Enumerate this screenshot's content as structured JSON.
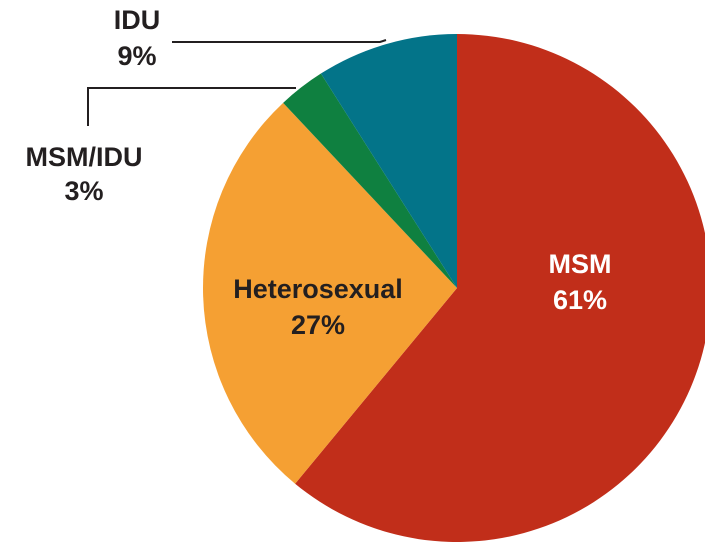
{
  "chart_data": {
    "type": "pie",
    "categories": [
      "MSM",
      "Heterosexual",
      "MSM/IDU",
      "IDU"
    ],
    "values": [
      61,
      27,
      3,
      9
    ],
    "value_labels": [
      "61%",
      "27%",
      "3%",
      "9%"
    ],
    "colors": [
      "#c12e1a",
      "#f5a033",
      "#0f8040",
      "#037489"
    ]
  }
}
